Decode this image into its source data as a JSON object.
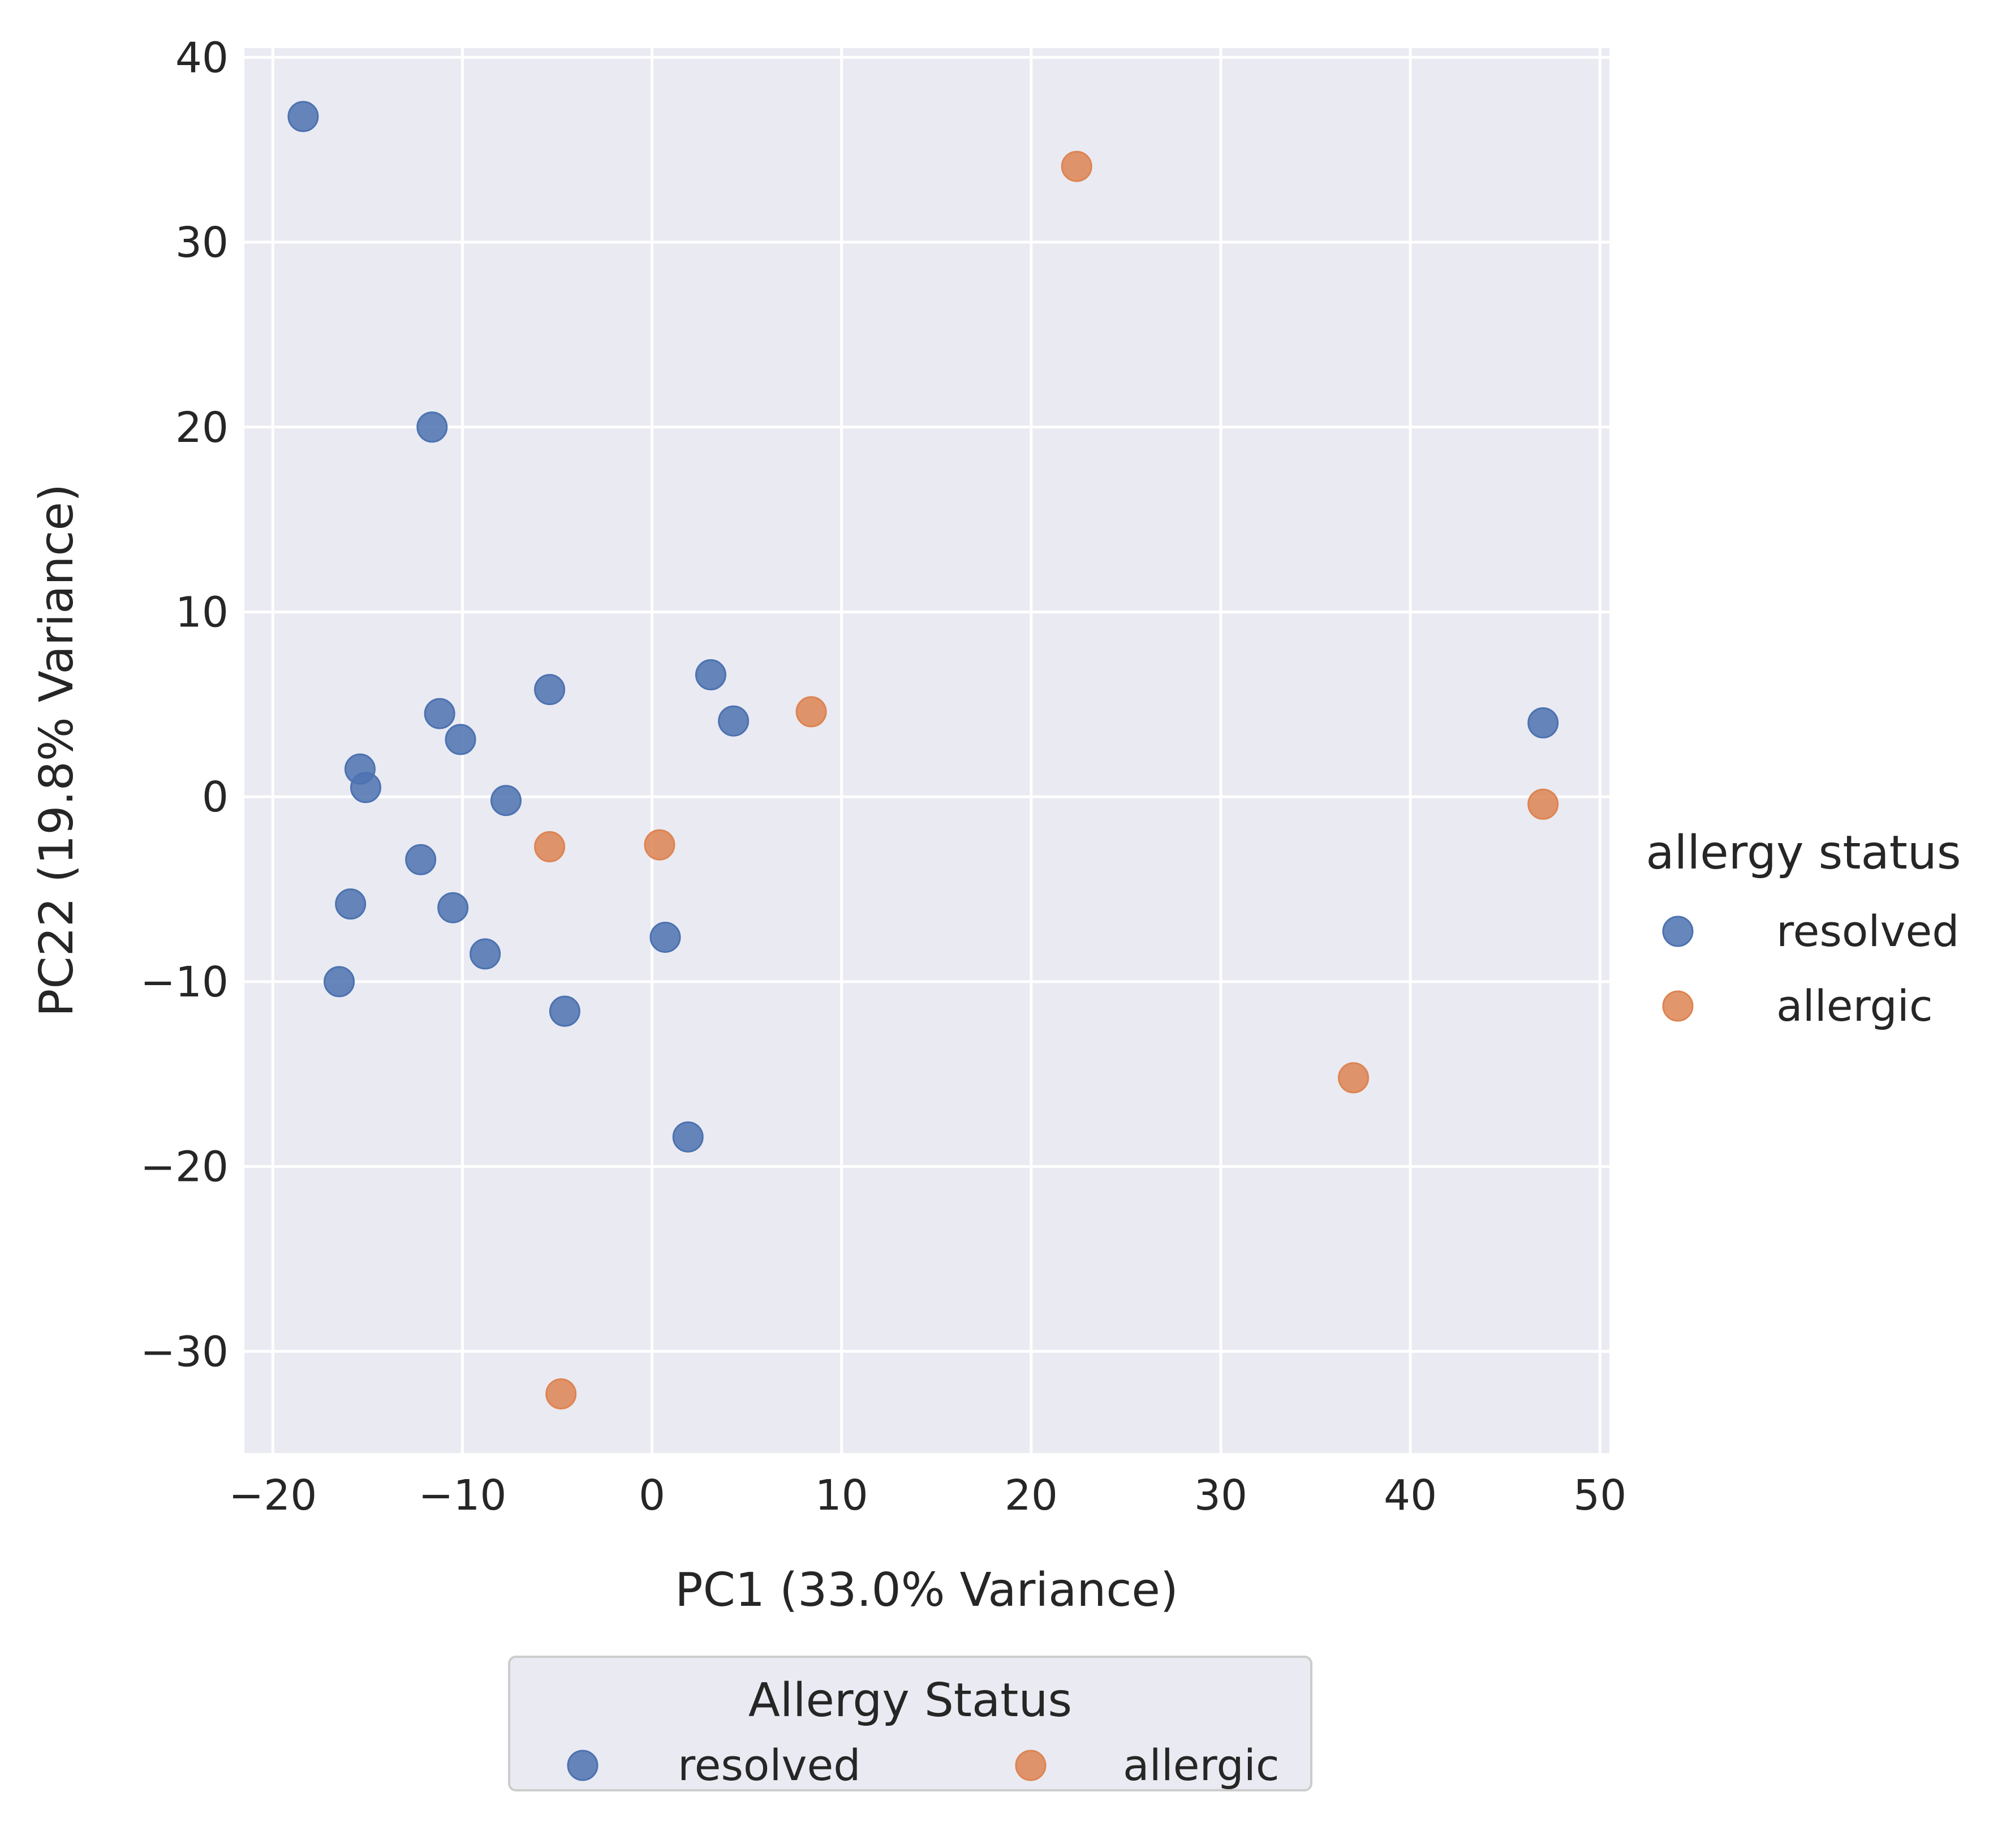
{
  "chart_data": {
    "type": "scatter",
    "xlabel": "PC1 (33.0% Variance)",
    "ylabel": "PC22 (19.8% Variance)",
    "xlim": [
      -21.5,
      50.5
    ],
    "ylim": [
      -35.5,
      40.5
    ],
    "xticks": [
      -20,
      -10,
      0,
      10,
      20,
      30,
      40,
      50
    ],
    "yticks": [
      -30,
      -20,
      -10,
      0,
      10,
      20,
      30,
      40
    ],
    "xtick_labels": [
      "−20",
      "−10",
      "0",
      "10",
      "20",
      "30",
      "40",
      "50"
    ],
    "ytick_labels": [
      "−30",
      "−20",
      "−10",
      "0",
      "10",
      "20",
      "30",
      "40"
    ],
    "grid": true,
    "series": [
      {
        "name": "resolved",
        "color": "#4c72b0",
        "points": [
          {
            "x": -18.4,
            "y": 36.8
          },
          {
            "x": -11.6,
            "y": 20.0
          },
          {
            "x": -11.2,
            "y": 4.5
          },
          {
            "x": -10.1,
            "y": 3.1
          },
          {
            "x": -5.4,
            "y": 5.8
          },
          {
            "x": 3.1,
            "y": 6.6
          },
          {
            "x": 4.3,
            "y": 4.1
          },
          {
            "x": -15.4,
            "y": 1.5
          },
          {
            "x": -15.1,
            "y": 0.5
          },
          {
            "x": -7.7,
            "y": -0.2
          },
          {
            "x": -12.2,
            "y": -3.4
          },
          {
            "x": -15.9,
            "y": -5.8
          },
          {
            "x": -10.5,
            "y": -6.0
          },
          {
            "x": -8.8,
            "y": -8.5
          },
          {
            "x": -16.5,
            "y": -10.0
          },
          {
            "x": 0.7,
            "y": -7.6
          },
          {
            "x": -4.6,
            "y": -11.6
          },
          {
            "x": 1.9,
            "y": -18.4
          },
          {
            "x": 47.0,
            "y": 4.0
          }
        ]
      },
      {
        "name": "allergic",
        "color": "#dd8452",
        "points": [
          {
            "x": 22.4,
            "y": 34.1
          },
          {
            "x": 8.4,
            "y": 4.6
          },
          {
            "x": -5.4,
            "y": -2.7
          },
          {
            "x": 0.4,
            "y": -2.6
          },
          {
            "x": 47.0,
            "y": -0.4
          },
          {
            "x": 37.0,
            "y": -15.2
          },
          {
            "x": -4.8,
            "y": -32.3
          }
        ]
      }
    ],
    "legend_right": {
      "title": "allergy status",
      "placement": "center-right",
      "entries": [
        "resolved",
        "allergic"
      ]
    },
    "legend_bottom": {
      "title": "Allergy Status",
      "placement": "bottom-center",
      "entries": [
        "resolved",
        "allergic"
      ]
    }
  }
}
